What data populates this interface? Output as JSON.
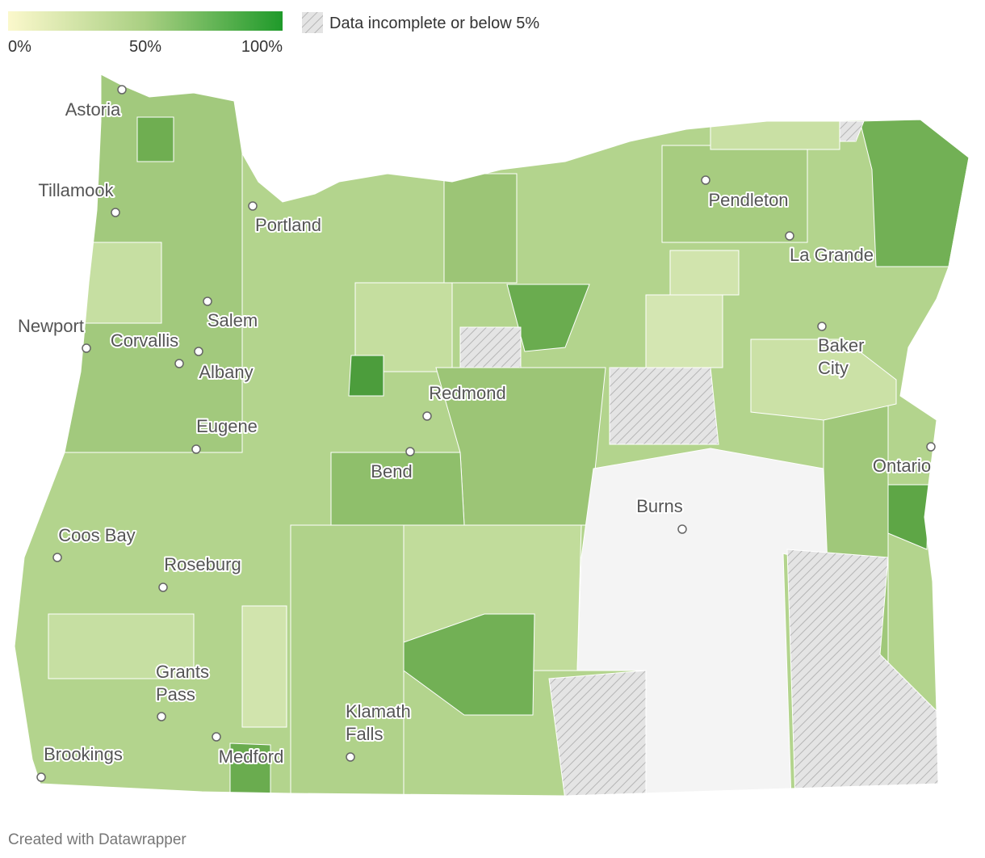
{
  "legend": {
    "min_label": "0%",
    "mid_label": "50%",
    "max_label": "100%",
    "hatch_label": "Data incomplete or below 5%"
  },
  "cities": [
    {
      "name": "Astoria"
    },
    {
      "name": "Tillamook"
    },
    {
      "name": "Portland"
    },
    {
      "name": "Newport"
    },
    {
      "name": "Corvallis"
    },
    {
      "name": "Salem"
    },
    {
      "name": "Albany"
    },
    {
      "name": "Eugene"
    },
    {
      "name": "Redmond"
    },
    {
      "name": "Bend"
    },
    {
      "name": "Pendleton"
    },
    {
      "name": "La Grande"
    },
    {
      "name": [
        "Baker",
        "City"
      ]
    },
    {
      "name": "Ontario"
    },
    {
      "name": "Burns"
    },
    {
      "name": "Coos Bay"
    },
    {
      "name": "Roseburg"
    },
    {
      "name": [
        "Grants",
        "Pass"
      ]
    },
    {
      "name": [
        "Klamath",
        "Falls"
      ]
    },
    {
      "name": "Brookings"
    },
    {
      "name": "Medford"
    }
  ],
  "footer": "Created with Datawrapper"
}
